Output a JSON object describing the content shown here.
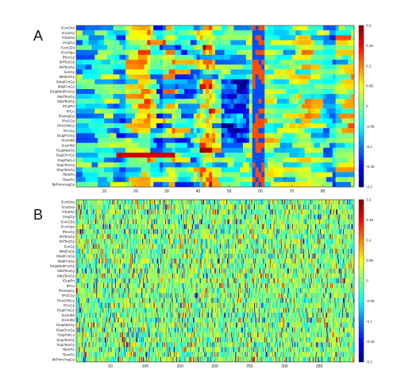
{
  "chart_data": [
    {
      "type": "heatmap",
      "panel_label": "A",
      "rows": [
        "lCorOne",
        "lCorZne",
        "lThaPra",
        "lAngGy",
        "lCorOZe",
        "lCorOpe",
        "lRecGy",
        "lInfTeoGy",
        "lInfTeoGy",
        "lLinGy",
        "lMidOrGy",
        "lMedFroGy",
        "lMidFroGy",
        "lSupMedFroGy",
        "lMidTeoGy",
        "lMidTeoGy",
        "lOcpPo",
        "lPCu",
        "lPamipGy",
        "lPoCGy",
        "lPreOrbGy",
        "lPrcGy",
        "lSupFroGy",
        "lCerHlbl",
        "lCerHlbl",
        "lSupMarGy",
        "lSupOccGy",
        "lSupParLo",
        "lSupTeoGy",
        "lSupTeoGy",
        "lTemPo",
        "lTemPo",
        "lbiPrimAngGy"
      ],
      "columns": 90,
      "x_ticks": [
        10,
        20,
        30,
        40,
        50,
        60,
        70,
        80
      ],
      "xlim": [
        1,
        90
      ],
      "colorbar": {
        "min": -0.2,
        "max": 0.2,
        "ticks": [
          0.2,
          0.15,
          0.1,
          0.05,
          0,
          -0.05,
          -0.1,
          -0.15,
          -0.2
        ],
        "tick_labels": [
          "0.2",
          "0.15",
          "0.1",
          "0.05",
          "0",
          "-0.05",
          "-0.1",
          "-0.15",
          "-0.2"
        ]
      },
      "pattern": "smooth",
      "seed": 11
    },
    {
      "type": "heatmap",
      "panel_label": "B",
      "rows": [
        "lCorOne",
        "lCorZne",
        "lThaPra",
        "lAngGy",
        "lCorOZe",
        "lCorOpe",
        "lRecGy",
        "lInfTeoGy",
        "lInfTeoGy",
        "lLinGy",
        "lMidOrGy",
        "lMedFroGy",
        "lMidFroGy",
        "lSupMedFroGy",
        "lMidTeoGy",
        "lMidTeoGy",
        "lOcpPo",
        "lPCu",
        "lPamipGy",
        "lPoCGy",
        "lPreOrbGy",
        "lPrcGy",
        "lSupFroGy",
        "lCerHlbl",
        "lCerHlbl",
        "lSupMarGy",
        "lSupOccGy",
        "lSupParLo",
        "lSupTeoGy",
        "lSupTeoGy",
        "lTemPo",
        "lTemPo",
        "lbiPrimAngGy"
      ],
      "columns": 400,
      "x_ticks": [
        50,
        100,
        150,
        200,
        250,
        300,
        350
      ],
      "xlim": [
        1,
        400
      ],
      "colorbar": {
        "min": -0.2,
        "max": 0.2,
        "ticks": [
          0.2,
          0.15,
          0.1,
          0.05,
          0,
          -0.05,
          -0.1,
          -0.15,
          -0.2
        ],
        "tick_labels": [
          "0.2",
          "0.15",
          "0.1",
          "0.05",
          "0",
          "-0.05",
          "-0.1",
          "-0.15",
          "-0.2"
        ]
      },
      "pattern": "noisy",
      "seed": 7
    }
  ]
}
